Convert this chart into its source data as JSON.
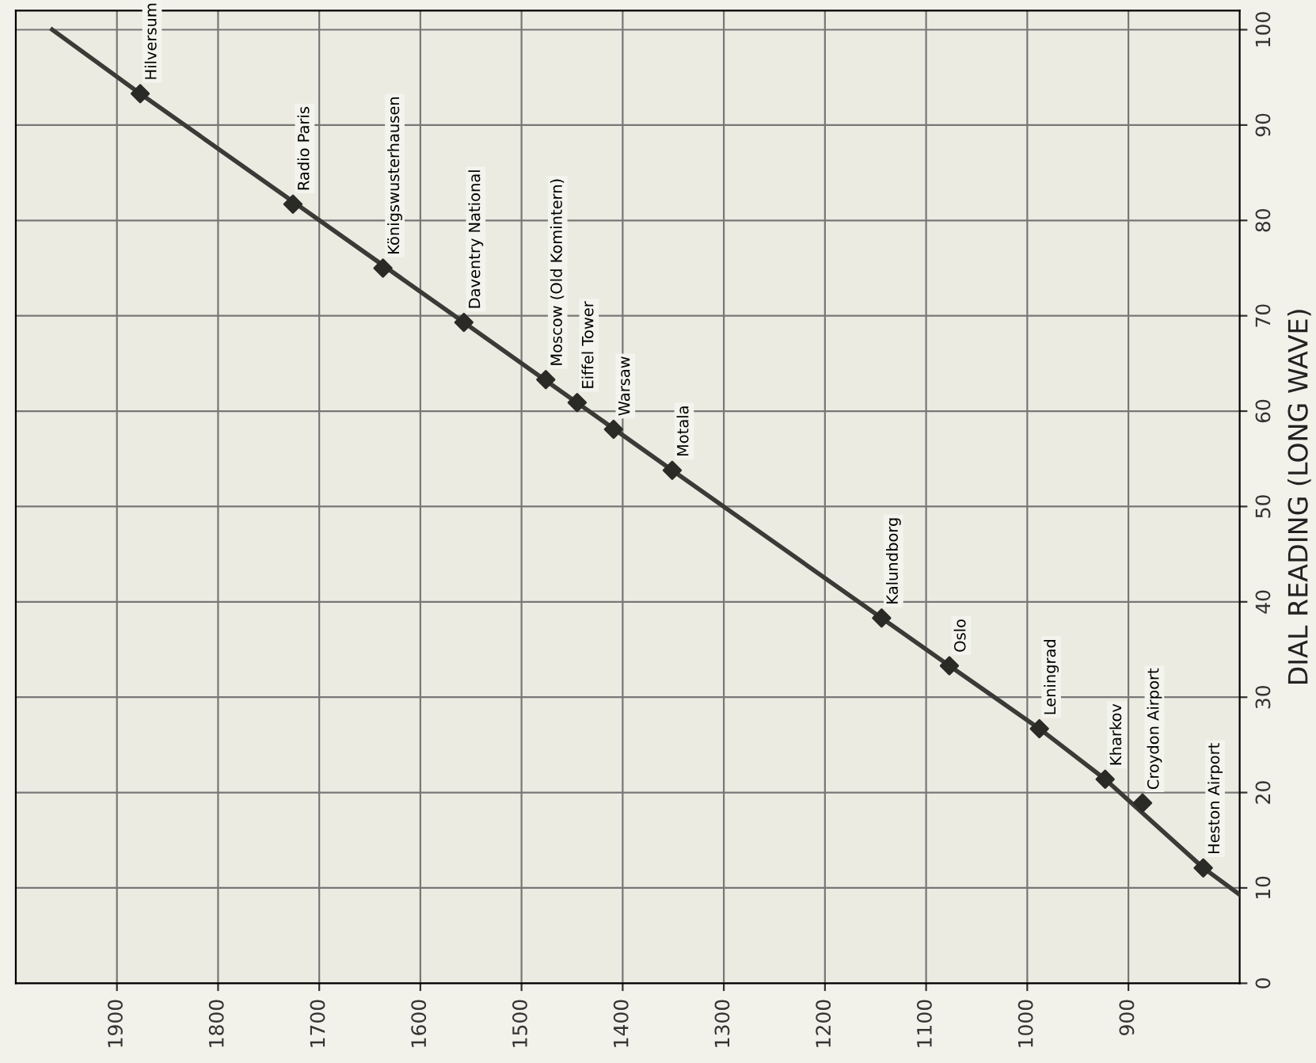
{
  "chart_data": {
    "type": "scatter",
    "ylabel": "DIAL READING (LONG WAVE)",
    "xlim": [
      2000,
      790
    ],
    "xticks": [
      1900,
      1800,
      1700,
      1600,
      1500,
      1400,
      1300,
      1200,
      1100,
      1000,
      900
    ],
    "ylim": [
      0,
      102
    ],
    "yticks": [
      0,
      10,
      20,
      30,
      40,
      50,
      60,
      70,
      80,
      90,
      100
    ],
    "grid": true,
    "marker": "diamond",
    "series": [
      {
        "type": "line",
        "color": "#3a3a36",
        "x": [
          1964,
          1877,
          1557,
          1351,
          1144,
          1077,
          988,
          923,
          826,
          790
        ],
        "values": [
          100,
          93.3,
          69.3,
          53.8,
          38.3,
          33.3,
          26.7,
          21.4,
          12.1,
          9.3
        ],
        "marker": "none"
      },
      {
        "color": "#2a2a26",
        "x": [
          1877,
          1726,
          1637,
          1557,
          1476,
          1445,
          1409,
          1351,
          1144,
          1077,
          988,
          923,
          886,
          826
        ],
        "values": [
          93.3,
          81.7,
          75.0,
          69.3,
          63.3,
          60.9,
          58.1,
          53.8,
          38.3,
          33.3,
          26.7,
          21.4,
          18.9,
          12.1
        ]
      }
    ],
    "annotations": [
      {
        "text": "Hilversum",
        "x": 1877,
        "y": 93.3
      },
      {
        "text": "Radio Paris",
        "x": 1726,
        "y": 81.7
      },
      {
        "text": "Königswusterhausen",
        "x": 1637,
        "y": 75.0
      },
      {
        "text": "Daventry National",
        "x": 1557,
        "y": 69.3
      },
      {
        "text": "Moscow (Old Komintern)",
        "x": 1476,
        "y": 63.3
      },
      {
        "text": "Eiffel Tower",
        "x": 1445,
        "y": 60.9
      },
      {
        "text": "Warsaw",
        "x": 1409,
        "y": 58.1
      },
      {
        "text": "Motala",
        "x": 1351,
        "y": 53.8
      },
      {
        "text": "Kalundborg",
        "x": 1144,
        "y": 38.3
      },
      {
        "text": "Oslo",
        "x": 1077,
        "y": 33.3
      },
      {
        "text": "Leningrad",
        "x": 988,
        "y": 26.7
      },
      {
        "text": "Kharkov",
        "x": 923,
        "y": 21.4
      },
      {
        "text": "Croydon Airport",
        "x": 886,
        "y": 18.9
      },
      {
        "text": "Heston Airport",
        "x": 826,
        "y": 12.1
      }
    ]
  }
}
